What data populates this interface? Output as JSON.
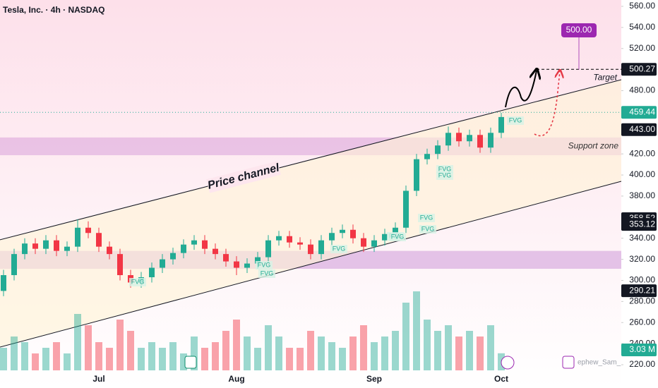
{
  "chart_data": {
    "type": "candlestick",
    "title": "Tesla, Inc. · 4h · NASDAQ",
    "categories": [
      null,
      null,
      null,
      null,
      null,
      null,
      null,
      null,
      null,
      "Jul",
      null,
      null,
      null,
      null,
      null,
      null,
      null,
      null,
      null,
      null,
      null,
      null,
      "Aug",
      null,
      null,
      null,
      null,
      null,
      null,
      null,
      null,
      null,
      null,
      null,
      null,
      "Sep",
      null,
      null,
      null,
      null,
      null,
      null,
      null,
      null,
      null,
      null,
      null,
      "Oct"
    ],
    "open": [
      290,
      305,
      325,
      335,
      330,
      338,
      328,
      332,
      350,
      345,
      332,
      325,
      305,
      298,
      303,
      312,
      320,
      326,
      334,
      338,
      330,
      325,
      318,
      312,
      316,
      322,
      338,
      342,
      336,
      334,
      325,
      338,
      345,
      348,
      340,
      332,
      338,
      344,
      350,
      385,
      415,
      420,
      428,
      440,
      432,
      438,
      426,
      440
    ],
    "high": [
      310,
      330,
      340,
      340,
      343,
      343,
      337,
      358,
      356,
      350,
      337,
      330,
      310,
      308,
      317,
      325,
      331,
      339,
      343,
      343,
      335,
      330,
      323,
      321,
      327,
      343,
      347,
      347,
      341,
      339,
      343,
      350,
      353,
      353,
      345,
      343,
      349,
      355,
      390,
      420,
      425,
      433,
      446,
      445,
      443,
      443,
      445,
      459
    ],
    "low": [
      285,
      300,
      320,
      325,
      325,
      323,
      323,
      327,
      340,
      327,
      320,
      300,
      293,
      293,
      298,
      307,
      315,
      321,
      329,
      325,
      320,
      313,
      305,
      307,
      311,
      317,
      333,
      331,
      329,
      320,
      320,
      333,
      340,
      335,
      327,
      327,
      333,
      339,
      345,
      380,
      410,
      415,
      423,
      427,
      427,
      421,
      421,
      435
    ],
    "close": [
      305,
      325,
      335,
      330,
      338,
      328,
      332,
      350,
      345,
      332,
      325,
      305,
      298,
      303,
      312,
      320,
      326,
      334,
      338,
      330,
      325,
      318,
      312,
      316,
      322,
      338,
      342,
      336,
      334,
      325,
      338,
      345,
      348,
      340,
      332,
      338,
      344,
      350,
      385,
      415,
      420,
      428,
      440,
      432,
      438,
      426,
      440,
      455
    ],
    "volume": [
      4,
      6,
      5,
      3,
      4,
      5,
      3,
      10,
      8,
      5,
      4,
      9,
      7,
      4,
      5,
      4,
      5,
      3,
      6,
      4,
      5,
      7,
      9,
      6,
      4,
      8,
      6,
      4,
      4,
      7,
      6,
      5,
      4,
      6,
      8,
      5,
      6,
      7,
      12,
      14,
      9,
      7,
      8,
      6,
      7,
      6,
      8,
      3.03
    ],
    "volume_label": "3.03 M",
    "up_color": "#22ab94",
    "down_color": "#f23645",
    "ylim": [
      220,
      560
    ],
    "yticks": [
      {
        "value": 220,
        "label": "220.00"
      },
      {
        "value": 240,
        "label": "240.00"
      },
      {
        "value": 260,
        "label": "260.00"
      },
      {
        "value": 280,
        "label": "280.00"
      },
      {
        "value": 300,
        "label": "300.00"
      },
      {
        "value": 320,
        "label": "320.00"
      },
      {
        "value": 340,
        "label": "340.00"
      },
      {
        "value": 360,
        "label": "360.00"
      },
      {
        "value": 380,
        "label": "380.00"
      },
      {
        "value": 400,
        "label": "400.00"
      },
      {
        "value": 420,
        "label": "420.00"
      },
      {
        "value": 440,
        "label": "440.00"
      },
      {
        "value": 460,
        "label": "460.00"
      },
      {
        "value": 480,
        "label": "480.00"
      },
      {
        "value": 500,
        "label": "500.00"
      },
      {
        "value": 520,
        "label": "520.00"
      },
      {
        "value": 540,
        "label": "540.00"
      },
      {
        "value": 560,
        "label": "560.00"
      }
    ],
    "price_labels": [
      {
        "value": 500.27,
        "label": "500.27",
        "color": "#131722"
      },
      {
        "value": 459.44,
        "label": "459.44",
        "color": "#22ab94"
      },
      {
        "value": 443,
        "label": "443.00",
        "color": "#131722"
      },
      {
        "value": 358.52,
        "label": "358.52",
        "color": "#131722"
      },
      {
        "value": 353.12,
        "label": "353.12",
        "color": "#131722"
      },
      {
        "value": 290.21,
        "label": "290.21",
        "color": "#131722"
      }
    ],
    "target": {
      "label": "Target",
      "value": 500.27
    },
    "target_bubble": {
      "value": 500,
      "label": "500.00",
      "color": "#9c27b0"
    },
    "channel": {
      "label": "Price channel",
      "upper": [
        338.5,
        490.4
      ],
      "lower": [
        236.7,
        394
      ]
    },
    "support_zone": {
      "label": "Support zone",
      "range": [
        418.8,
        435.6
      ]
    },
    "lower_zone": {
      "range": [
        311,
        328
      ]
    },
    "fvg_labels": [
      "FVG",
      "FVG",
      "FVG",
      "FVG",
      "FVG",
      "FVG",
      "FVG",
      "FVG",
      "FVG",
      "FVG",
      "FVG"
    ],
    "watermark": "ephew_Sam_"
  }
}
